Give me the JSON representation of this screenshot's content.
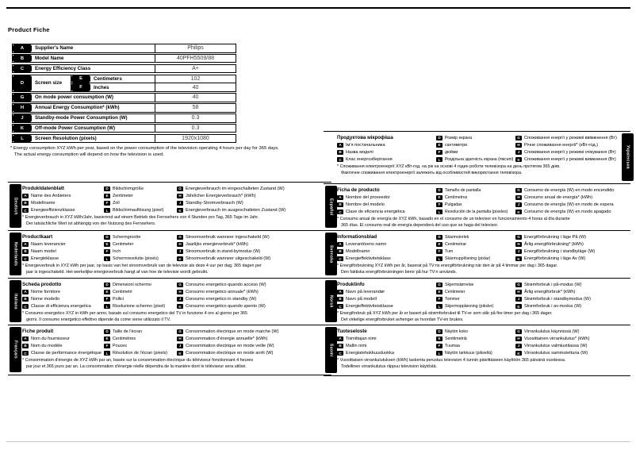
{
  "page": {
    "heading": "Product Fiche"
  },
  "fiche_table": {
    "rows": [
      {
        "badge": "A",
        "label": "Supplier's Name",
        "value": "Philips"
      },
      {
        "badge": "B",
        "label": "Model Name",
        "value": "40PFH5509/88"
      },
      {
        "badge": "C",
        "label": "Energy Efficiency Class",
        "value": "A+"
      },
      {
        "badge": "D",
        "label": "Screen size",
        "sub": [
          {
            "badge": "E",
            "label": "Centimeters",
            "value": "102"
          },
          {
            "badge": "F",
            "label": "Inches",
            "value": "40"
          }
        ]
      },
      {
        "badge": "G",
        "label": "On mode power consumption (W)",
        "value": "40"
      },
      {
        "badge": "H",
        "label": "Annual Energy Consumption* (kWh)",
        "value": "58"
      },
      {
        "badge": "J",
        "label": "Standby-mode Power Consumption (W)",
        "value": "0.3"
      },
      {
        "badge": "K",
        "label": "Off-mode Power Consumption (W)",
        "value": "0.3"
      },
      {
        "badge": "L",
        "label": "Screen Resolution (pixels)",
        "value": "1920x1080"
      }
    ]
  },
  "footnote": {
    "lines": [
      "* Energy consumption XYZ kWh per year, based on the power consumption of the television operating 4 hours per day for 365 days.",
      "The actual energy consumption will depend on how the television is used."
    ]
  },
  "sections": {
    "left": [
      {
        "tab": "Deutsch",
        "title": "Produktdatenblatt",
        "col1": [
          {
            "k": "A",
            "t": "Name des Anbieters"
          },
          {
            "k": "B",
            "t": "Modellname"
          },
          {
            "k": "C",
            "t": "Energieeffizienzklasse"
          }
        ],
        "col2": [
          {
            "k": "D",
            "t": "Bildschirmgröße"
          },
          {
            "k": "E",
            "t": "Zentimeter"
          },
          {
            "k": "F",
            "t": "Zoll"
          },
          {
            "k": "L",
            "t": "Bildschirmauflösung (pixel)"
          }
        ],
        "col3": [
          {
            "k": "G",
            "t": "Energieverbrauch im eingeschalteten Zustand (W)"
          },
          {
            "k": "H",
            "t": "Jährlicher Energieverbrauch* (kWh)"
          },
          {
            "k": "J",
            "t": "Standby-Stromverbrauch (W)"
          },
          {
            "k": "K",
            "t": "Energieverbrauch im ausgeschalteten Zustand (W)"
          }
        ],
        "footnote": [
          "* Energieverbrauch in XYZ kWh/Jahr, basierend auf einem Betrieb des Fernsehers von 4 Stunden pro Tag, 365 Tage im Jahr.",
          "Der tatsächliche Wert ist abhängig von der Nutzung des Fernsehers."
        ]
      },
      {
        "tab": "Nederlands",
        "title": "Productkaart",
        "col1": [
          {
            "k": "A",
            "t": "Naam leverancier"
          },
          {
            "k": "B",
            "t": "Naam model"
          },
          {
            "k": "C",
            "t": "Energieklasse"
          }
        ],
        "col2": [
          {
            "k": "D",
            "t": "Schermgrootte"
          },
          {
            "k": "E",
            "t": "Centimeter"
          },
          {
            "k": "F",
            "t": "Inch"
          },
          {
            "k": "L",
            "t": "Schermresolutie (pixels)"
          }
        ],
        "col3": [
          {
            "k": "G",
            "t": "Stroomverbruik wanneer ingeschakeld (W)"
          },
          {
            "k": "H",
            "t": "Jaarlijks energieverbruik* (kWh)"
          },
          {
            "k": "J",
            "t": "Stroomverbruik in stand-bymodus (W)"
          },
          {
            "k": "K",
            "t": "Stroomverbruik wanneer uitgeschakeld (W)"
          }
        ],
        "footnote": [
          "* Energieverbruik in XYZ kWh per jaar, op basis van het stroomverbruik van de televisie als deze 4 uur per dag, 365 dagen per",
          "jaar is ingeschakeld. Het werkelijke energieverbruik hangt af van hoe de televisie wordt gebruikt."
        ]
      },
      {
        "tab": "Italiano",
        "title": "Scheda prodotto",
        "col1": [
          {
            "k": "A",
            "t": "Nome fornitore"
          },
          {
            "k": "B",
            "t": "Nome modello"
          },
          {
            "k": "C",
            "t": "Classe di efficienza energetica"
          }
        ],
        "col2": [
          {
            "k": "D",
            "t": "Dimensioni schermo"
          },
          {
            "k": "E",
            "t": "Centimetri"
          },
          {
            "k": "F",
            "t": "Pollici"
          },
          {
            "k": "L",
            "t": "Risoluzione schermo (pixel)"
          }
        ],
        "col3": [
          {
            "k": "G",
            "t": "Consumo energetico quando acceso (W)"
          },
          {
            "k": "H",
            "t": "Consumo energetico annuale* (kWh)"
          },
          {
            "k": "J",
            "t": "Consumo energetico in standby (W)"
          },
          {
            "k": "K",
            "t": "Consumo energetico quando spento (W)"
          }
        ],
        "footnote": [
          "* Consumo energetico XYZ in kWh per anno, basato sul consumo energetico del TV in funzione 4 ore al giorno per 365",
          "giorni. Il consumo energetico effettivo dipende da come viene utilizzato il TV."
        ]
      },
      {
        "tab": "Français",
        "title": "Fiche produit",
        "col1": [
          {
            "k": "A",
            "t": "Nom du fournisseur"
          },
          {
            "k": "B",
            "t": "Nom du modèle"
          },
          {
            "k": "C",
            "t": "Classe de performance énergétique"
          }
        ],
        "col2": [
          {
            "k": "D",
            "t": "Taille de l'écran"
          },
          {
            "k": "E",
            "t": "Centimètres"
          },
          {
            "k": "F",
            "t": "Pouces"
          },
          {
            "k": "L",
            "t": "Résolution de l'écran (pixels)"
          }
        ],
        "col3": [
          {
            "k": "G",
            "t": "Consommation électrique en mode marche (W)"
          },
          {
            "k": "H",
            "t": "Consommation d'énergie annuelle* (kWh)"
          },
          {
            "k": "J",
            "t": "Consommation électrique en mode veille (W)"
          },
          {
            "k": "K",
            "t": "Consommation électrique en mode arrêt (W)"
          }
        ],
        "footnote": [
          "* Consommation d'énergie de XYZ kWh par an, basée sur la consommation électrique du téléviseur fonctionnant 4 heures",
          "par jour et 365 jours par an. La consommation d'énergie réelle dépendra de la manière dont le téléviseur sera utilisé."
        ]
      }
    ],
    "right": [
      {
        "tab": "Українська",
        "tab_side": "right",
        "title": "Продуктова мікрофіша",
        "col1": [
          {
            "k": "A",
            "t": "Ім'я постачальника"
          },
          {
            "k": "B",
            "t": "Назва моделі"
          },
          {
            "k": "C",
            "t": "Клас енергозберігання"
          }
        ],
        "col2": [
          {
            "k": "D",
            "t": "Розмір екрана"
          },
          {
            "k": "E",
            "t": "сантиметри"
          },
          {
            "k": "F",
            "t": "дюйми"
          },
          {
            "k": "L",
            "t": "Роздільна здатність екрана (пікселі)"
          }
        ],
        "col3": [
          {
            "k": "G",
            "t": "Споживання енергії у режимі ввімкнення (Вт)"
          },
          {
            "k": "H",
            "t": "Річне споживання енергії* (кВт-год.)"
          },
          {
            "k": "J",
            "t": "Споживання енергії у режимі очікування (Вт)"
          },
          {
            "k": "K",
            "t": "Споживання енергії у режимі вимкнення (Вт)"
          }
        ],
        "footnote": [
          "* Споживання електроенергії XYZ кВт-год. на рік на основі 4 годин роботи телевізора на день протягом 365 днів.",
          "Фактичне споживання електроенергії залежить від особливостей використання телевізора."
        ]
      },
      {
        "tab": "Español",
        "title": "Ficha de producto",
        "col1": [
          {
            "k": "A",
            "t": "Nombre del proveedor"
          },
          {
            "k": "B",
            "t": "Nombre del modelo"
          },
          {
            "k": "C",
            "t": "Clase de eficiencia energética"
          }
        ],
        "col2": [
          {
            "k": "D",
            "t": "Tamaño de pantalla"
          },
          {
            "k": "E",
            "t": "Centímetros"
          },
          {
            "k": "F",
            "t": "Pulgadas"
          },
          {
            "k": "L",
            "t": "Resolución de la pantalla (píxeles)"
          }
        ],
        "col3": [
          {
            "k": "G",
            "t": "Consumo de energía (W) en modo encendido"
          },
          {
            "k": "H",
            "t": "Consumo anual de energía* (kWh)"
          },
          {
            "k": "J",
            "t": "Consumo de energía (W) en modo de espera"
          },
          {
            "k": "K",
            "t": "Consumo de energía (W) en modo apagado"
          }
        ],
        "footnote": [
          "* Consumo anual de energía de XYZ kWh, basado en el consumo de un televisor en funcionamiento 4 horas al día durante",
          "365 días. El consumo real de energía dependerá del uso que se haga del televisor."
        ]
      },
      {
        "tab": "Svenska",
        "title": "Informationsblad",
        "col1": [
          {
            "k": "A",
            "t": "Leverantörens namn"
          },
          {
            "k": "B",
            "t": "Modellnamn"
          },
          {
            "k": "C",
            "t": "Energieffektivitetsklass"
          }
        ],
        "col2": [
          {
            "k": "D",
            "t": "Skärmstorlek"
          },
          {
            "k": "E",
            "t": "Centimetrar"
          },
          {
            "k": "F",
            "t": "Tum"
          },
          {
            "k": "L",
            "t": "Skärmupplösning (pixlar)"
          }
        ],
        "col3": [
          {
            "k": "G",
            "t": "Energiförbrukning i läge På (W)"
          },
          {
            "k": "H",
            "t": "Årlig energiförbrukning* (kWh)"
          },
          {
            "k": "J",
            "t": "Energiförbrukning i standbyläge (W)"
          },
          {
            "k": "K",
            "t": "Energiförbrukning i läge Av (W)"
          }
        ],
        "footnote": [
          "* Energiförbrukning XYZ kWh per år, baserat på TV:ns energiförbrukning när den är på 4 timmar per dag i 365 dagar.",
          "Den faktiska energiförbrukningen beror på hur TV:n används."
        ]
      },
      {
        "tab": "Norsk",
        "title": "Produktinfo",
        "col1": [
          {
            "k": "A",
            "t": "Navn på leverandør"
          },
          {
            "k": "B",
            "t": "Navn på modell"
          },
          {
            "k": "C",
            "t": "Energieffektivitetsklasse"
          }
        ],
        "col2": [
          {
            "k": "D",
            "t": "Skjermstørrelse"
          },
          {
            "k": "E",
            "t": "Centimeter"
          },
          {
            "k": "F",
            "t": "Tommer"
          },
          {
            "k": "L",
            "t": "Skjermoppløsning (piksler)"
          }
        ],
        "col3": [
          {
            "k": "G",
            "t": "Strømforbruk i på-modus (W)"
          },
          {
            "k": "H",
            "t": "Årlig energiforbruk* (kWh)"
          },
          {
            "k": "J",
            "t": "Strømforbruk i standbymodus (W)"
          },
          {
            "k": "K",
            "t": "Strømforbruk i av-modus (W)"
          }
        ],
        "footnote": [
          "* Energiforbruk på XYZ kWh per år er basert på strømforbruket til TV-er som står på fire timer per dag i 365 dager.",
          "Det virkelige energiforbruket avhenger av hvordan TV-en brukes."
        ]
      },
      {
        "tab": "Suomi",
        "title": "Tuoteseloste",
        "col1": [
          {
            "k": "A",
            "t": "Toimittajan nimi"
          },
          {
            "k": "B",
            "t": "Mallin nimi"
          },
          {
            "k": "C",
            "t": "Energiatehokkuusluokka"
          }
        ],
        "col2": [
          {
            "k": "D",
            "t": "Näytön koko"
          },
          {
            "k": "E",
            "t": "Senttimetriä"
          },
          {
            "k": "F",
            "t": "Tuumaa"
          },
          {
            "k": "L",
            "t": "Näytön tarkkuus (pikseliä)"
          }
        ],
        "col3": [
          {
            "k": "G",
            "t": "Virrankulutus käynnissä (W)"
          },
          {
            "k": "H",
            "t": "Vuosittainen virrankulutus* (kWh)"
          },
          {
            "k": "J",
            "t": "Virrankulutus valmiustilassa (W)"
          },
          {
            "k": "K",
            "t": "Virrankulutus sammutettuna (W)"
          }
        ],
        "footnote": [
          "* Vuosittaisen virrankulutuksen (kWh) laskenta perustuu television 4 tunnin päivittäiseen käyttöön 365 päivänä vuodessa.",
          "Todellinen virrankulutus riippuu television käytöstä."
        ]
      }
    ]
  }
}
